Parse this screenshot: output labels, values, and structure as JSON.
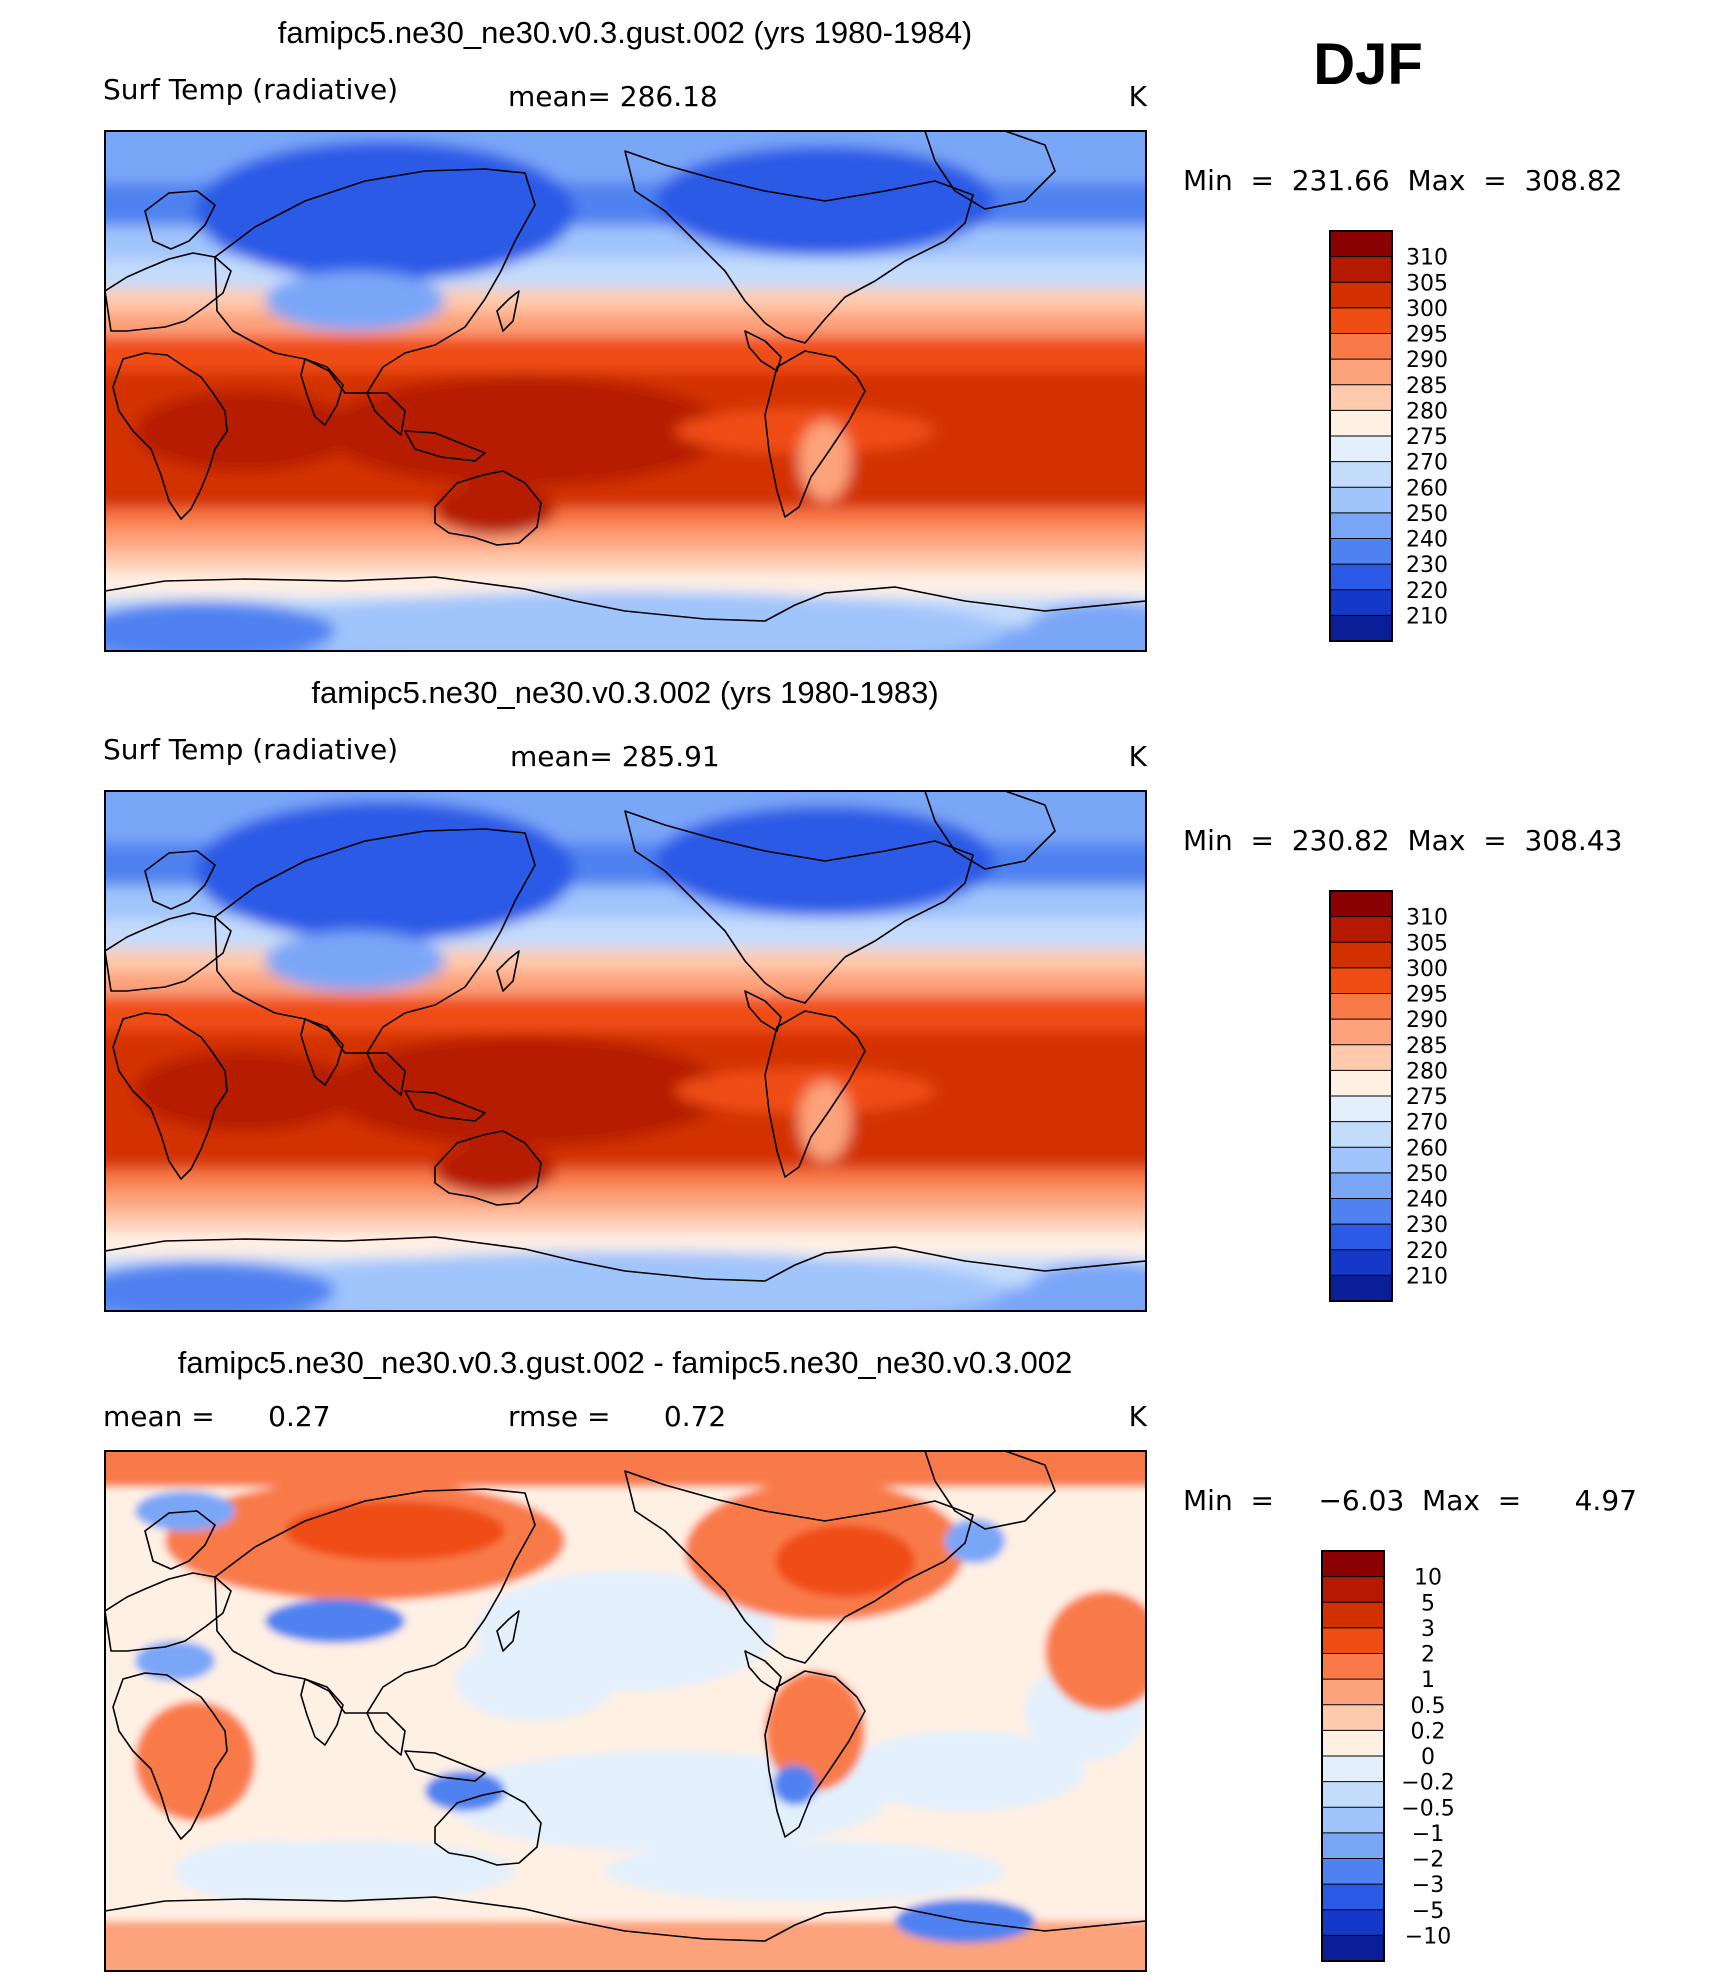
{
  "season": "DJF",
  "chart_data": [
    {
      "type": "heatmap",
      "title": "famipc5.ne30_ne30.v0.3.gust.002 (yrs 1980-1984)",
      "left_label": "Surf Temp (radiative)",
      "center_label": "mean=  286.18",
      "units": "K",
      "minmax": "Min  =  231.66  Max  =  308.82",
      "colorbar": {
        "levels": [
          "310",
          "305",
          "300",
          "295",
          "290",
          "285",
          "280",
          "275",
          "270",
          "260",
          "250",
          "240",
          "230",
          "220",
          "210"
        ],
        "colors": [
          "#8b0000",
          "#b51a00",
          "#d33000",
          "#f04d14",
          "#f97a48",
          "#fda37c",
          "#fecaae",
          "#fff0e4",
          "#e3f0fc",
          "#c4dcfc",
          "#a0c4fc",
          "#7aa6f8",
          "#4f82f0",
          "#2a5ae6",
          "#1438c8",
          "#0a1e98"
        ]
      },
      "map": {
        "kind": "absolute"
      }
    },
    {
      "type": "heatmap",
      "title": "famipc5.ne30_ne30.v0.3.002 (yrs 1980-1983)",
      "left_label": "Surf Temp (radiative)",
      "center_label": "mean=  285.91",
      "units": "K",
      "minmax": "Min  =  230.82  Max  =  308.43",
      "colorbar": {
        "levels": [
          "310",
          "305",
          "300",
          "295",
          "290",
          "285",
          "280",
          "275",
          "270",
          "260",
          "250",
          "240",
          "230",
          "220",
          "210"
        ],
        "colors": [
          "#8b0000",
          "#b51a00",
          "#d33000",
          "#f04d14",
          "#f97a48",
          "#fda37c",
          "#fecaae",
          "#fff0e4",
          "#e3f0fc",
          "#c4dcfc",
          "#a0c4fc",
          "#7aa6f8",
          "#4f82f0",
          "#2a5ae6",
          "#1438c8",
          "#0a1e98"
        ]
      },
      "map": {
        "kind": "absolute"
      }
    },
    {
      "type": "heatmap",
      "title": "famipc5.ne30_ne30.v0.3.gust.002 - famipc5.ne30_ne30.v0.3.002",
      "left_label": "mean =      0.27",
      "center_label": "rmse =      0.72",
      "units": "K",
      "minmax": "Min  =     −6.03  Max  =      4.97",
      "colorbar": {
        "levels": [
          "10",
          "5",
          "3",
          "2",
          "1",
          "0.5",
          "0.2",
          "0",
          "−0.2",
          "−0.5",
          "−1",
          "−2",
          "−3",
          "−5",
          "−10"
        ],
        "colors": [
          "#8b0000",
          "#b51a00",
          "#d33000",
          "#f04d14",
          "#f97a48",
          "#fda37c",
          "#fecaae",
          "#fff0e4",
          "#e3f0fc",
          "#c4dcfc",
          "#a0c4fc",
          "#7aa6f8",
          "#4f82f0",
          "#2a5ae6",
          "#1438c8",
          "#0a1e98"
        ]
      },
      "map": {
        "kind": "difference"
      }
    }
  ]
}
